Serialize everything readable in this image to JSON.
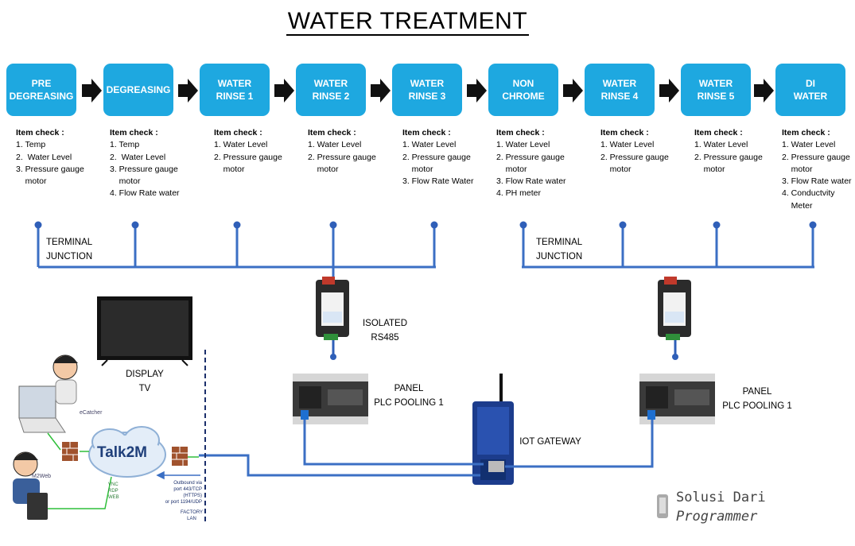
{
  "title": "WATER TREATMENT",
  "stages": [
    {
      "label": "PRE\nDEGREASING",
      "items": [
        "1. Temp",
        "2.  Water Level",
        "3. Pressure gauge",
        "    motor"
      ]
    },
    {
      "label": "DEGREASING",
      "items": [
        "1. Temp",
        "2.  Water Level",
        "3. Pressure gauge",
        "    motor",
        "4. Flow Rate water"
      ]
    },
    {
      "label": "WATER\nRINSE 1",
      "items": [
        "1. Water Level",
        "2. Pressure gauge",
        "    motor"
      ]
    },
    {
      "label": "WATER\nRINSE 2",
      "items": [
        "1. Water Level",
        "2. Pressure gauge",
        "    motor"
      ]
    },
    {
      "label": "WATER\nRINSE 3",
      "items": [
        "1. Water Level",
        "2. Pressure gauge",
        "    motor",
        "3. Flow Rate Water"
      ]
    },
    {
      "label": "NON\nCHROME",
      "items": [
        "1. Water Level",
        "2. Pressure gauge",
        "    motor",
        "3. Flow Rate water",
        "4. PH meter"
      ]
    },
    {
      "label": "WATER\nRINSE 4",
      "items": [
        "1. Water Level",
        "2. Pressure gauge",
        "    motor"
      ]
    },
    {
      "label": "WATER\nRINSE 5",
      "items": [
        "1. Water Level",
        "2. Pressure gauge",
        "    motor"
      ]
    },
    {
      "label": "DI\nWATER",
      "items": [
        "1. Water Level",
        "2. Pressure gauge",
        "    motor",
        "3. Flow Rate water",
        "4. Conductvity",
        "    Meter"
      ]
    }
  ],
  "item_check_label": "Item check :",
  "terminal_junction": [
    "TERMINAL\nJUNCTION",
    "TERMINAL\nJUNCTION"
  ],
  "isolated_rs485": "ISOLATED\nRS485",
  "panel_1": "PANEL\nPLC POOLING 1",
  "panel_2": "PANEL\nPLC POOLING 1",
  "display_tv": "DISPLAY\nTV",
  "iot_gateway": "IOT GATEWAY",
  "talk2m": {
    "text": "Talk2M",
    "ecatcher": "eCatcher",
    "m2web": "M2Web",
    "vnc": "VNC\nRDP\nWEB",
    "outbound": "Outbound via\nport 443/TCP (HTTPS)\nor port 1194/UDP",
    "factory_lan": "FACTORY\nLAN"
  },
  "watermark": [
    "Solusi Dari",
    "Programmer"
  ],
  "colors": {
    "stage": "#1ea8e0",
    "line": "#3b6fc4",
    "node": "#2f5fb8",
    "arrow": "#111111"
  }
}
